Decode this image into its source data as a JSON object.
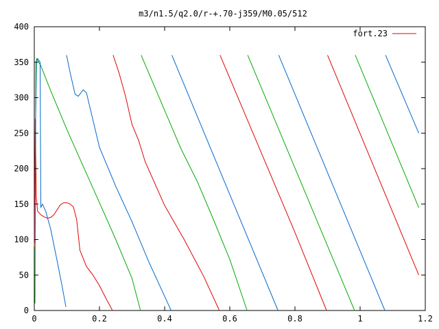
{
  "chart_data": {
    "type": "line",
    "title": "m3/n1.5/q2.0/r-+.70-j359/M0.05/512",
    "xlim": [
      0,
      1.2
    ],
    "ylim": [
      0,
      400
    ],
    "x_ticks": [
      "0",
      "0.2",
      "0.4",
      "0.6",
      "0.8",
      "1",
      "1.2"
    ],
    "y_ticks": [
      "0",
      "50",
      "100",
      "150",
      "200",
      "250",
      "300",
      "350",
      "400"
    ],
    "grid": false,
    "legend": {
      "position": "top-right",
      "entries": [
        {
          "label": "fort.23",
          "color": "#e00000"
        }
      ]
    },
    "series": [
      {
        "name": "fort.23",
        "color": "#e00000",
        "points": [
          [
            0.0,
            90
          ],
          [
            0.003,
            270
          ],
          [
            0.006,
            160
          ],
          [
            0.01,
            140
          ],
          [
            0.02,
            135
          ],
          [
            0.03,
            132
          ],
          [
            0.04,
            130
          ],
          [
            0.05,
            131
          ],
          [
            0.06,
            135
          ],
          [
            0.07,
            142
          ],
          [
            0.08,
            149
          ],
          [
            0.09,
            152
          ],
          [
            0.1,
            152
          ],
          [
            0.11,
            150
          ],
          [
            0.12,
            146
          ],
          [
            0.13,
            128
          ],
          [
            0.14,
            85
          ],
          [
            0.16,
            62
          ],
          [
            0.18,
            50
          ],
          [
            0.2,
            35
          ],
          [
            0.22,
            17
          ],
          [
            0.24,
            0
          ],
          null,
          [
            0.242,
            360
          ],
          [
            0.26,
            335
          ],
          [
            0.28,
            302
          ],
          [
            0.3,
            262
          ],
          [
            0.32,
            240
          ],
          [
            0.34,
            210
          ],
          [
            0.4,
            148
          ],
          [
            0.46,
            100
          ],
          [
            0.52,
            48
          ],
          [
            0.568,
            0
          ],
          null,
          [
            0.57,
            360
          ],
          [
            0.8,
            110
          ],
          [
            0.897,
            0
          ],
          null,
          [
            0.9,
            360
          ],
          [
            1.18,
            50
          ]
        ]
      },
      {
        "name": "",
        "color": "#00aa00",
        "points": [
          [
            0.002,
            10
          ],
          [
            0.004,
            268
          ],
          [
            0.007,
            355
          ],
          [
            0.02,
            345
          ],
          [
            0.05,
            310
          ],
          [
            0.1,
            255
          ],
          [
            0.2,
            152
          ],
          [
            0.25,
            100
          ],
          [
            0.3,
            45
          ],
          [
            0.326,
            0
          ],
          null,
          [
            0.328,
            360
          ],
          [
            0.45,
            228
          ],
          [
            0.5,
            182
          ],
          [
            0.55,
            128
          ],
          [
            0.6,
            72
          ],
          [
            0.653,
            0
          ],
          null,
          [
            0.655,
            360
          ],
          [
            0.983,
            0
          ],
          null,
          [
            0.985,
            360
          ],
          [
            1.18,
            145
          ]
        ]
      },
      {
        "name": "",
        "color": "#0066cc",
        "points": [
          [
            0.002,
            95
          ],
          [
            0.005,
            350
          ],
          [
            0.01,
            355
          ],
          [
            0.015,
            352
          ],
          [
            0.018,
            350
          ],
          [
            0.02,
            145
          ],
          [
            0.025,
            150
          ],
          [
            0.035,
            140
          ],
          [
            0.05,
            115
          ],
          [
            0.07,
            70
          ],
          [
            0.085,
            35
          ],
          [
            0.097,
            5
          ],
          null,
          [
            0.099,
            360
          ],
          [
            0.11,
            335
          ],
          [
            0.125,
            305
          ],
          [
            0.135,
            302
          ],
          [
            0.15,
            311
          ],
          [
            0.16,
            307
          ],
          [
            0.2,
            230
          ],
          [
            0.25,
            175
          ],
          [
            0.3,
            125
          ],
          [
            0.35,
            70
          ],
          [
            0.4,
            20
          ],
          [
            0.42,
            0
          ],
          null,
          [
            0.422,
            360
          ],
          [
            0.748,
            0
          ],
          null,
          [
            0.75,
            360
          ],
          [
            1.076,
            0
          ],
          null,
          [
            1.078,
            360
          ],
          [
            1.18,
            250
          ]
        ]
      }
    ]
  }
}
